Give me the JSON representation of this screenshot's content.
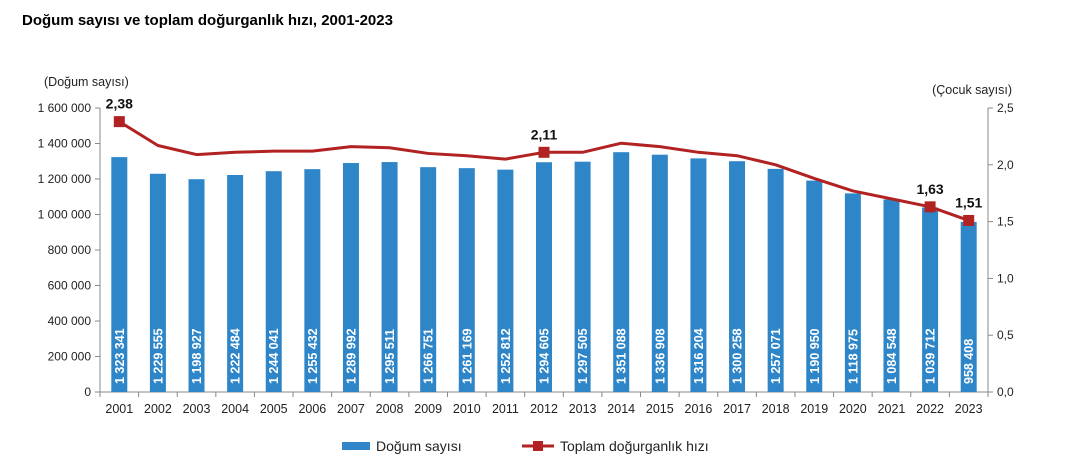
{
  "chart_data": {
    "type": "bar+line",
    "title": "Doğum sayısı ve toplam doğurganlık hızı, 2001-2023",
    "y_left_label": "(Doğum sayısı)",
    "y_right_label": "(Çocuk sayısı)",
    "y_left_range": [
      0,
      1600000
    ],
    "y_right_range": [
      0,
      2.5
    ],
    "y_left_ticks": [
      "0",
      "200 000",
      "400 000",
      "600 000",
      "800 000",
      "1 000 000",
      "1 200 000",
      "1 400 000",
      "1 600 000"
    ],
    "y_right_ticks": [
      "0,0",
      "0,5",
      "1,0",
      "1,5",
      "2,0",
      "2,5"
    ],
    "categories": [
      "2001",
      "2002",
      "2003",
      "2004",
      "2005",
      "2006",
      "2007",
      "2008",
      "2009",
      "2010",
      "2011",
      "2012",
      "2013",
      "2014",
      "2015",
      "2016",
      "2017",
      "2018",
      "2019",
      "2020",
      "2021",
      "2022",
      "2023"
    ],
    "series": [
      {
        "name": "Doğum sayısı",
        "type": "bar",
        "color": "#2E86C9",
        "values": [
          1323341,
          1229555,
          1198927,
          1222484,
          1244041,
          1255432,
          1289992,
          1295511,
          1266751,
          1261169,
          1252812,
          1294605,
          1297505,
          1351088,
          1336908,
          1316204,
          1300258,
          1257071,
          1190950,
          1118975,
          1084548,
          1039712,
          958408
        ],
        "labels": [
          "1 323 341",
          "1 229 555",
          "1 198 927",
          "1 222 484",
          "1 244 041",
          "1 255 432",
          "1 289 992",
          "1 295 511",
          "1 266 751",
          "1 261 169",
          "1 252 812",
          "1 294 605",
          "1 297 505",
          "1 351 088",
          "1 336 908",
          "1 316 204",
          "1 300 258",
          "1 257 071",
          "1 190 950",
          "1 118 975",
          "1 084 548",
          "1 039 712",
          "958 408"
        ]
      },
      {
        "name": "Toplam doğurganlık hızı",
        "type": "line",
        "color": "#B22222",
        "values": [
          2.38,
          2.17,
          2.09,
          2.11,
          2.12,
          2.12,
          2.16,
          2.15,
          2.1,
          2.08,
          2.05,
          2.11,
          2.11,
          2.19,
          2.16,
          2.11,
          2.08,
          2.0,
          1.88,
          1.77,
          1.7,
          1.63,
          1.51
        ],
        "marked_points": [
          {
            "index": 0,
            "label": "2,38"
          },
          {
            "index": 11,
            "label": "2,11"
          },
          {
            "index": 21,
            "label": "1,63"
          },
          {
            "index": 22,
            "label": "1,51"
          }
        ]
      }
    ],
    "legend_position": "bottom",
    "grid": false
  }
}
